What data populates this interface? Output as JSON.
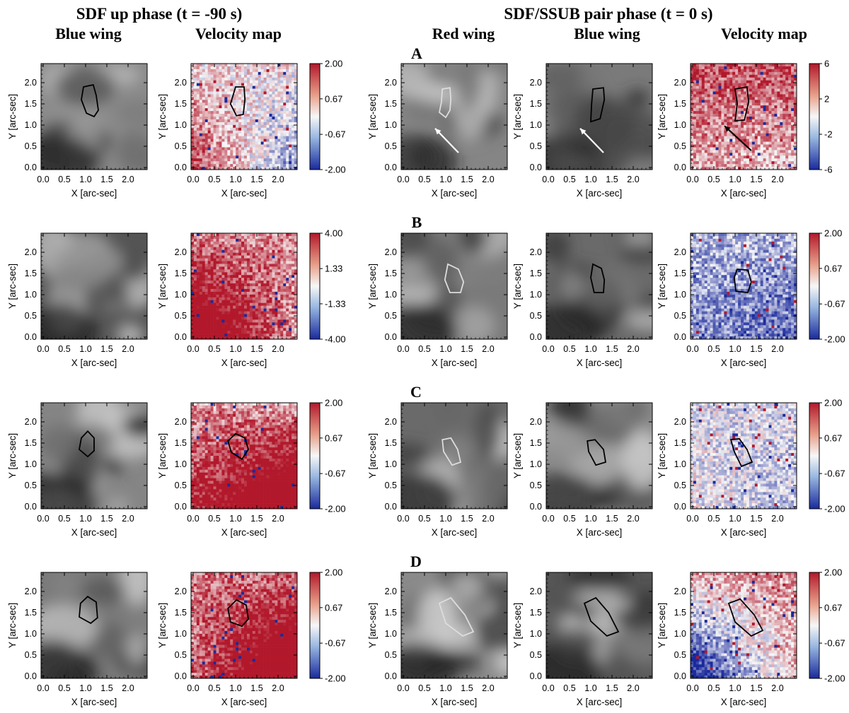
{
  "headers": {
    "left_group": "SDF up phase (t = -90 s)",
    "right_group": "SDF/SSUB pair phase (t = 0 s)",
    "columns": [
      "Blue wing",
      "Velocity map",
      "Red wing",
      "Blue wing",
      "Velocity map"
    ]
  },
  "axis": {
    "xlabel": "X [arc-sec]",
    "ylabel": "Y [arc-sec]",
    "ticks": [
      "0.0",
      "0.5",
      "1.0",
      "1.5",
      "2.0"
    ],
    "range": [
      -0.05,
      2.45
    ]
  },
  "rows": [
    {
      "label": "A",
      "colorbars": [
        {
          "ticks": [
            "2.00",
            "0.67",
            "-0.67",
            "-2.00"
          ],
          "range": [
            -2,
            2
          ]
        },
        {
          "ticks": [
            "6",
            "2",
            "-2",
            "-6"
          ],
          "range": [
            -6,
            6
          ]
        }
      ],
      "contours": [
        [
          [
            0.95,
            1.9
          ],
          [
            1.18,
            1.95
          ],
          [
            1.25,
            1.7
          ],
          [
            1.3,
            1.35
          ],
          [
            1.2,
            1.2
          ],
          [
            1.02,
            1.28
          ],
          [
            0.9,
            1.6
          ]
        ],
        [
          [
            1.0,
            1.9
          ],
          [
            1.2,
            1.9
          ],
          [
            1.22,
            1.6
          ],
          [
            1.18,
            1.25
          ],
          [
            1.02,
            1.22
          ],
          [
            0.88,
            1.5
          ]
        ],
        [
          [
            0.92,
            1.85
          ],
          [
            1.1,
            1.88
          ],
          [
            1.12,
            1.6
          ],
          [
            1.1,
            1.35
          ],
          [
            1.0,
            1.18
          ],
          [
            0.85,
            1.3
          ],
          [
            0.9,
            1.55
          ]
        ],
        [
          [
            1.05,
            1.85
          ],
          [
            1.3,
            1.88
          ],
          [
            1.32,
            1.6
          ],
          [
            1.22,
            1.15
          ],
          [
            1.0,
            1.08
          ],
          [
            1.02,
            1.5
          ]
        ],
        [
          [
            1.0,
            1.85
          ],
          [
            1.28,
            1.9
          ],
          [
            1.32,
            1.55
          ],
          [
            1.22,
            1.12
          ],
          [
            1.0,
            1.1
          ],
          [
            1.05,
            1.5
          ]
        ]
      ],
      "contour_colors": [
        "#000000",
        "#000000",
        "#dddddd",
        "#000000",
        "#000000"
      ],
      "arrows": [
        {
          "panel": 2,
          "from": [
            1.3,
            0.35
          ],
          "to": [
            0.75,
            0.92
          ],
          "color": "#ffffff"
        },
        {
          "panel": 3,
          "from": [
            1.3,
            0.35
          ],
          "to": [
            0.75,
            0.92
          ],
          "color": "#ffffff"
        },
        {
          "panel": 4,
          "from": [
            1.38,
            0.4
          ],
          "to": [
            0.75,
            0.98
          ],
          "color": "#000000"
        }
      ]
    },
    {
      "label": "B",
      "colorbars": [
        {
          "ticks": [
            "4.00",
            "1.33",
            "-1.33",
            "-4.00"
          ],
          "range": [
            -4,
            4
          ]
        },
        {
          "ticks": [
            "2.00",
            "0.67",
            "-0.67",
            "-2.00"
          ],
          "range": [
            -2,
            2
          ]
        }
      ],
      "contours": [
        [],
        [],
        [
          [
            1.05,
            1.72
          ],
          [
            1.3,
            1.6
          ],
          [
            1.42,
            1.3
          ],
          [
            1.35,
            1.05
          ],
          [
            1.1,
            1.05
          ],
          [
            0.98,
            1.35
          ]
        ],
        [
          [
            1.05,
            1.72
          ],
          [
            1.25,
            1.62
          ],
          [
            1.32,
            1.35
          ],
          [
            1.3,
            1.05
          ],
          [
            1.08,
            1.05
          ],
          [
            1.0,
            1.4
          ]
        ],
        [
          [
            1.05,
            1.6
          ],
          [
            1.3,
            1.58
          ],
          [
            1.38,
            1.3
          ],
          [
            1.3,
            1.05
          ],
          [
            1.02,
            1.08
          ],
          [
            0.98,
            1.4
          ]
        ]
      ],
      "contour_colors": [
        "#000000",
        "#000000",
        "#dddddd",
        "#000000",
        "#000000"
      ],
      "arrows": []
    },
    {
      "label": "C",
      "colorbars": [
        {
          "ticks": [
            "2.00",
            "0.67",
            "-0.67",
            "-2.00"
          ],
          "range": [
            -2,
            2
          ]
        },
        {
          "ticks": [
            "2.00",
            "0.67",
            "-0.67",
            "-2.00"
          ],
          "range": [
            -2,
            2
          ]
        }
      ],
      "contours": [
        [
          [
            0.9,
            1.62
          ],
          [
            1.05,
            1.78
          ],
          [
            1.2,
            1.62
          ],
          [
            1.2,
            1.32
          ],
          [
            1.05,
            1.18
          ],
          [
            0.85,
            1.35
          ]
        ],
        [
          [
            0.82,
            1.55
          ],
          [
            1.0,
            1.72
          ],
          [
            1.22,
            1.62
          ],
          [
            1.3,
            1.35
          ],
          [
            1.15,
            1.12
          ],
          [
            0.9,
            1.28
          ]
        ],
        [
          [
            0.92,
            1.58
          ],
          [
            1.12,
            1.62
          ],
          [
            1.28,
            1.35
          ],
          [
            1.35,
            1.05
          ],
          [
            1.15,
            0.98
          ],
          [
            0.95,
            1.3
          ]
        ],
        [
          [
            0.92,
            1.55
          ],
          [
            1.1,
            1.58
          ],
          [
            1.3,
            1.35
          ],
          [
            1.35,
            1.05
          ],
          [
            1.12,
            0.98
          ],
          [
            0.95,
            1.3
          ]
        ],
        [
          [
            0.9,
            1.58
          ],
          [
            1.1,
            1.6
          ],
          [
            1.28,
            1.35
          ],
          [
            1.4,
            1.05
          ],
          [
            1.15,
            0.95
          ],
          [
            0.98,
            1.3
          ]
        ]
      ],
      "contour_colors": [
        "#000000",
        "#000000",
        "#dddddd",
        "#000000",
        "#000000"
      ],
      "arrows": []
    },
    {
      "label": "D",
      "colorbars": [
        {
          "ticks": [
            "2.00",
            "0.67",
            "-0.67",
            "-2.00"
          ],
          "range": [
            -2,
            2
          ]
        },
        {
          "ticks": [
            "2.00",
            "0.67",
            "-0.67",
            "-2.00"
          ],
          "range": [
            -2,
            2
          ]
        }
      ],
      "contours": [
        [
          [
            0.88,
            1.72
          ],
          [
            1.05,
            1.88
          ],
          [
            1.25,
            1.75
          ],
          [
            1.28,
            1.38
          ],
          [
            1.12,
            1.25
          ],
          [
            0.85,
            1.4
          ]
        ],
        [
          [
            0.82,
            1.6
          ],
          [
            1.02,
            1.8
          ],
          [
            1.25,
            1.68
          ],
          [
            1.3,
            1.35
          ],
          [
            1.15,
            1.18
          ],
          [
            0.88,
            1.28
          ]
        ],
        [
          [
            0.85,
            1.72
          ],
          [
            1.12,
            1.85
          ],
          [
            1.45,
            1.45
          ],
          [
            1.65,
            1.05
          ],
          [
            1.4,
            0.95
          ],
          [
            1.0,
            1.25
          ]
        ],
        [
          [
            0.85,
            1.72
          ],
          [
            1.12,
            1.85
          ],
          [
            1.42,
            1.5
          ],
          [
            1.65,
            1.05
          ],
          [
            1.38,
            0.95
          ],
          [
            1.0,
            1.3
          ]
        ],
        [
          [
            0.85,
            1.72
          ],
          [
            1.12,
            1.82
          ],
          [
            1.45,
            1.45
          ],
          [
            1.65,
            1.08
          ],
          [
            1.38,
            0.95
          ],
          [
            1.0,
            1.28
          ]
        ]
      ],
      "contour_colors": [
        "#000000",
        "#000000",
        "#dddddd",
        "#000000",
        "#000000"
      ],
      "arrows": []
    }
  ]
}
